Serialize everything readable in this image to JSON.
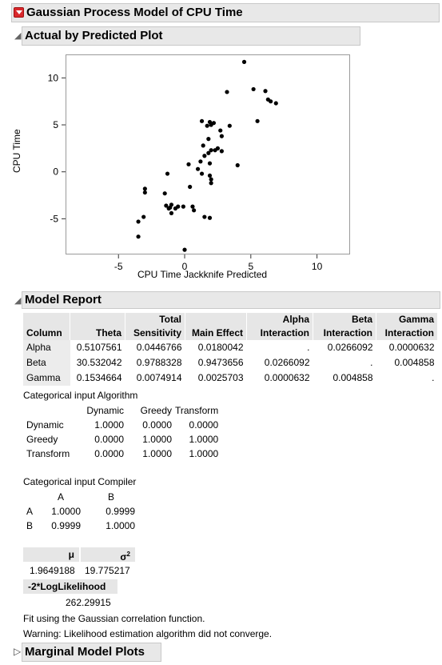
{
  "report": {
    "title": "Gaussian Process Model of CPU Time",
    "plot_section": "Actual by Predicted Plot",
    "model_section": "Model Report",
    "marginal_section": "Marginal Model Plots"
  },
  "chart_data": {
    "type": "scatter",
    "title": "",
    "xlabel": "CPU Time Jackknife Predicted",
    "ylabel": "CPU Time",
    "xlim": [
      -9,
      12.5
    ],
    "ylim": [
      -8.8,
      12.5
    ],
    "xticks": [
      -5,
      0,
      5,
      10
    ],
    "yticks": [
      -5,
      0,
      5,
      10
    ],
    "xtick_labels": [
      "-5",
      "0",
      "5",
      "10"
    ],
    "ytick_labels": [
      "-5",
      "0",
      "5",
      "10"
    ],
    "grid": false,
    "points": [
      [
        4.5,
        11.7
      ],
      [
        5.2,
        8.8
      ],
      [
        6.1,
        8.6
      ],
      [
        6.3,
        7.7
      ],
      [
        6.5,
        7.5
      ],
      [
        6.9,
        7.3
      ],
      [
        5.5,
        5.4
      ],
      [
        3.2,
        8.5
      ],
      [
        1.3,
        5.4
      ],
      [
        1.9,
        5.3
      ],
      [
        2.0,
        5.0
      ],
      [
        2.2,
        5.2
      ],
      [
        1.7,
        4.9
      ],
      [
        3.4,
        4.9
      ],
      [
        2.7,
        4.4
      ],
      [
        1.8,
        3.5
      ],
      [
        2.8,
        3.8
      ],
      [
        1.4,
        2.8
      ],
      [
        2.5,
        2.5
      ],
      [
        2.0,
        2.3
      ],
      [
        1.8,
        2.0
      ],
      [
        2.3,
        2.3
      ],
      [
        2.8,
        2.2
      ],
      [
        1.5,
        1.7
      ],
      [
        1.2,
        1.1
      ],
      [
        0.3,
        0.8
      ],
      [
        1.9,
        0.9
      ],
      [
        4.0,
        0.7
      ],
      [
        1.0,
        0.3
      ],
      [
        1.9,
        -0.4
      ],
      [
        1.3,
        -0.2
      ],
      [
        -1.3,
        -0.2
      ],
      [
        2.0,
        -0.8
      ],
      [
        2.0,
        -1.2
      ],
      [
        0.4,
        -1.6
      ],
      [
        -3.0,
        -1.8
      ],
      [
        -3.0,
        -2.2
      ],
      [
        -1.5,
        -2.3
      ],
      [
        -1.4,
        -3.6
      ],
      [
        -1.0,
        -3.5
      ],
      [
        -1.1,
        -3.8
      ],
      [
        -1.2,
        -3.9
      ],
      [
        -0.7,
        -3.9
      ],
      [
        -0.5,
        -3.7
      ],
      [
        -0.1,
        -3.7
      ],
      [
        0.6,
        -3.7
      ],
      [
        0.7,
        -4.1
      ],
      [
        -1.0,
        -4.4
      ],
      [
        -3.1,
        -4.8
      ],
      [
        1.5,
        -4.8
      ],
      [
        1.9,
        -4.9
      ],
      [
        -3.5,
        -5.3
      ],
      [
        -3.5,
        -6.9
      ],
      [
        0.0,
        -8.3
      ]
    ]
  },
  "model_table": {
    "headers_top": [
      "",
      "",
      "Total",
      "",
      "Alpha",
      "Beta",
      "Gamma"
    ],
    "headers_bottom": [
      "Column",
      "Theta",
      "Sensitivity",
      "Main Effect",
      "Interaction",
      "Interaction",
      "Interaction"
    ],
    "rows": [
      [
        "Alpha",
        "0.5107561",
        "0.0446766",
        "0.0180042",
        ".",
        "0.0266092",
        "0.0000632"
      ],
      [
        "Beta",
        "30.532042",
        "0.9788328",
        "0.9473656",
        "0.0266092",
        ".",
        "0.004858"
      ],
      [
        "Gamma",
        "0.1534664",
        "0.0074914",
        "0.0025703",
        "0.0000632",
        "0.004858",
        "."
      ]
    ]
  },
  "algorithm": {
    "label": "Categorical input Algorithm",
    "columns": [
      "Dynamic",
      "Greedy",
      "Transform"
    ],
    "rows": [
      [
        "Dynamic",
        "1.0000",
        "0.0000",
        "0.0000"
      ],
      [
        "Greedy",
        "0.0000",
        "1.0000",
        "1.0000"
      ],
      [
        "Transform",
        "0.0000",
        "1.0000",
        "1.0000"
      ]
    ]
  },
  "compiler": {
    "label": "Categorical input Compiler",
    "columns": [
      "A",
      "B"
    ],
    "rows": [
      [
        "A",
        "1.0000",
        "0.9999"
      ],
      [
        "B",
        "0.9999",
        "1.0000"
      ]
    ]
  },
  "mu_sigma": {
    "mu_label": "μ",
    "sigma_label": "σ",
    "sigma_sup": "2",
    "mu_value": "1.9649188",
    "sigma_value": "19.775217"
  },
  "loglik": {
    "label": "-2*LogLikelihood",
    "value": "262.29915"
  },
  "notes": {
    "fit": "Fit using the Gaussian correlation function.",
    "warning": "Warning: Likelihood estimation algorithm did not converge."
  }
}
